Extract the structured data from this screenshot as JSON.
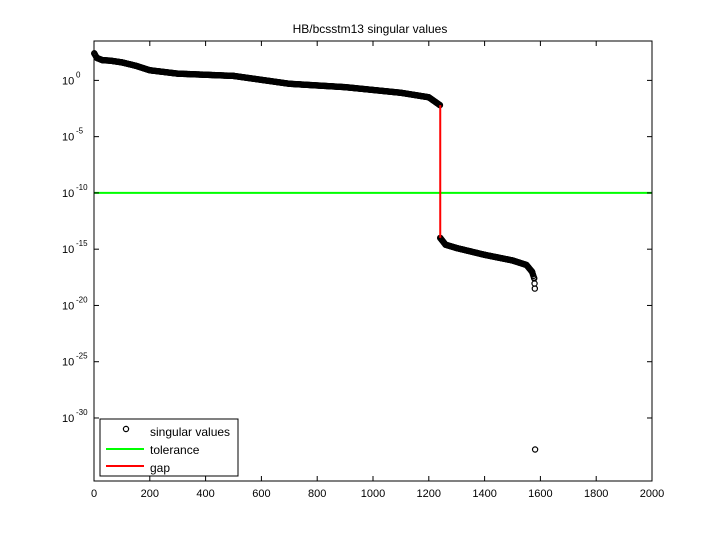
{
  "chart_data": {
    "type": "scatter",
    "title": "HB/bcsstm13 singular values",
    "xlabel": "",
    "ylabel": "",
    "xlim": [
      0,
      2000
    ],
    "ylim_log10": [
      -35.6,
      3.5
    ],
    "y_scale": "log",
    "grid": false,
    "legend_position": "bottom-left",
    "x_ticks": [
      0,
      200,
      400,
      600,
      800,
      1000,
      1200,
      1400,
      1600,
      1800,
      2000
    ],
    "y_ticks": [
      {
        "base": "10",
        "exp": "0",
        "log10": 0
      },
      {
        "base": "10",
        "exp": "-5",
        "log10": -5
      },
      {
        "base": "10",
        "exp": "-10",
        "log10": -10
      },
      {
        "base": "10",
        "exp": "-15",
        "log10": -15
      },
      {
        "base": "10",
        "exp": "-20",
        "log10": -20
      },
      {
        "base": "10",
        "exp": "-25",
        "log10": -25
      },
      {
        "base": "10",
        "exp": "-30",
        "log10": -30
      }
    ],
    "series": [
      {
        "name": "singular values",
        "marker": "circle",
        "color": "#000000",
        "curve_points": [
          {
            "x": 1,
            "log10y": 2.4
          },
          {
            "x": 10,
            "log10y": 2.0
          },
          {
            "x": 30,
            "log10y": 1.8
          },
          {
            "x": 60,
            "log10y": 1.75
          },
          {
            "x": 100,
            "log10y": 1.6
          },
          {
            "x": 150,
            "log10y": 1.3
          },
          {
            "x": 200,
            "log10y": 0.9
          },
          {
            "x": 300,
            "log10y": 0.6
          },
          {
            "x": 500,
            "log10y": 0.4
          },
          {
            "x": 700,
            "log10y": -0.3
          },
          {
            "x": 900,
            "log10y": -0.6
          },
          {
            "x": 1100,
            "log10y": -1.1
          },
          {
            "x": 1200,
            "log10y": -1.5
          },
          {
            "x": 1240,
            "log10y": -2.2
          },
          {
            "x": 1241,
            "log10y": -14.0
          },
          {
            "x": 1260,
            "log10y": -14.6
          },
          {
            "x": 1300,
            "log10y": -14.9
          },
          {
            "x": 1400,
            "log10y": -15.5
          },
          {
            "x": 1500,
            "log10y": -16.0
          },
          {
            "x": 1550,
            "log10y": -16.4
          },
          {
            "x": 1570,
            "log10y": -17.0
          },
          {
            "x": 1578,
            "log10y": -17.6
          },
          {
            "x": 1580,
            "log10y": -18.5
          }
        ],
        "isolated_points": [
          {
            "x": 1581,
            "log10y": -32.8
          }
        ]
      },
      {
        "name": "tolerance",
        "color": "#00ff00",
        "log10y": -10.0
      },
      {
        "name": "gap",
        "color": "#ff0000",
        "x": 1241,
        "log10y_top": -2.2,
        "log10y_bottom": -14.0
      }
    ]
  }
}
